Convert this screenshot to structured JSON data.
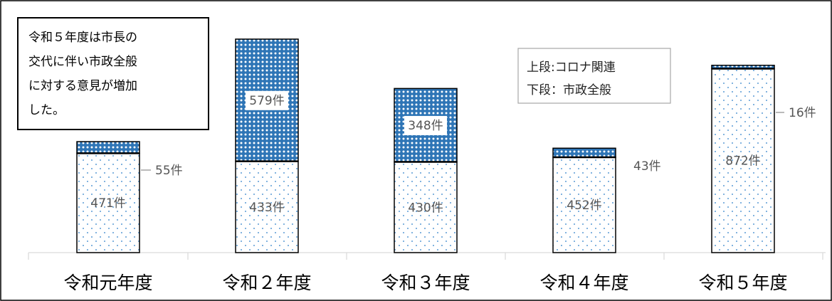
{
  "chart_data": {
    "type": "bar",
    "stacked": true,
    "categories": [
      "令和元年度",
      "令和２年度",
      "令和３年度",
      "令和４年度",
      "令和５年度"
    ],
    "series": [
      {
        "name": "下段：市政全般",
        "values": [
          471,
          433,
          430,
          452,
          872
        ],
        "labels": [
          "471件",
          "433件",
          "430件",
          "452件",
          "872件"
        ],
        "pattern": "dots"
      },
      {
        "name": "上段:コロナ関連",
        "values": [
          55,
          579,
          348,
          43,
          16
        ],
        "labels": [
          "55件",
          "579件",
          "348件",
          "43件",
          "16件"
        ],
        "pattern": "crosshatch"
      }
    ],
    "ylim": [
      0,
      1130
    ],
    "grid": false,
    "legend_position": "top-right",
    "colors": {
      "accent": "#2e75b6",
      "border": "#000000",
      "axis": "#d9d9d9",
      "label": "#555555"
    }
  },
  "note": {
    "lines": [
      "令和５年度は市長の",
      "交代に伴い市政全般",
      "に対する意見が増加",
      "した。"
    ]
  },
  "legend": {
    "lines": [
      "上段:コロナ関連",
      "下段：市政全般"
    ]
  }
}
